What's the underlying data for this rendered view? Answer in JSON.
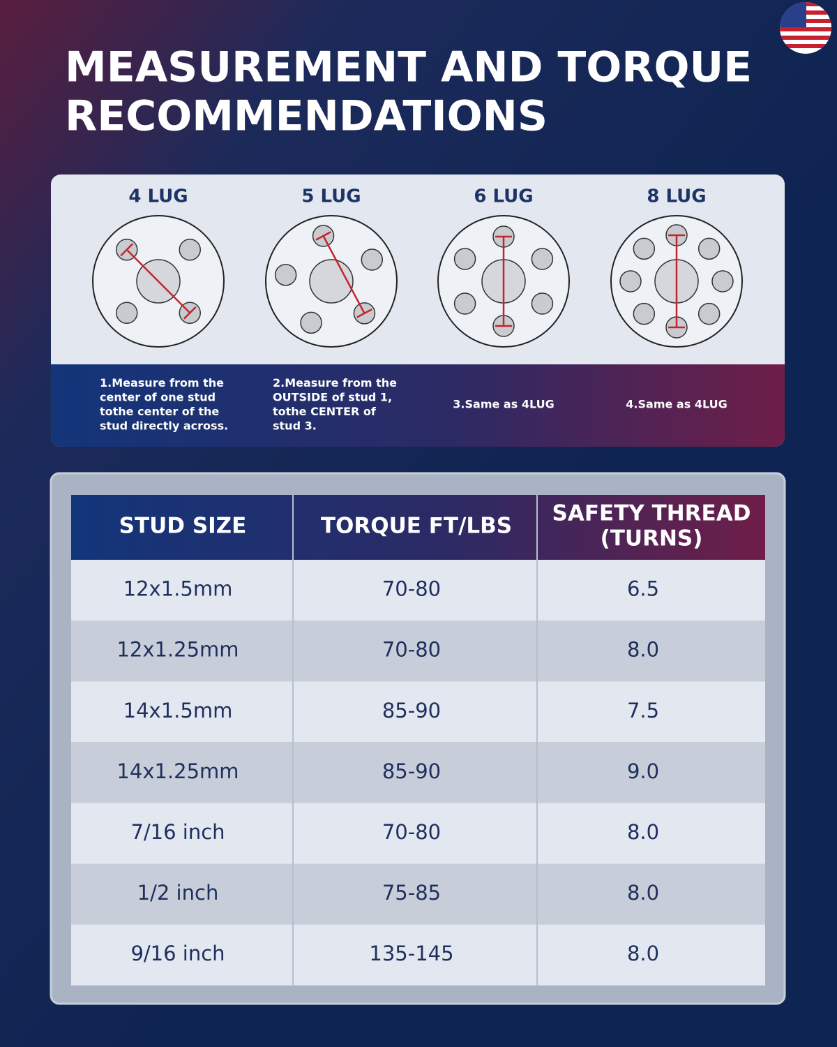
{
  "title": [
    "MEASUREMENT AND TORQUE",
    "RECOMMENDATIONS"
  ],
  "lugs": [
    {
      "label": "4 LUG",
      "caption": [
        "1.Measure from the",
        "center of one stud",
        "tothe center of the",
        "stud directly across."
      ]
    },
    {
      "label": "5 LUG",
      "caption": [
        "2.Measure from the",
        "OUTSIDE of stud 1,",
        "tothe CENTER of",
        "stud 3."
      ]
    },
    {
      "label": "6 LUG",
      "caption": [
        "3.Same as 4LUG"
      ]
    },
    {
      "label": "8 LUG",
      "caption": [
        "4.Same as 4LUG"
      ]
    }
  ],
  "table": {
    "header": [
      [
        "STUD SIZE"
      ],
      [
        "TORQUE FT/LBS"
      ],
      [
        "SAFETY THREAD",
        "(TURNS)"
      ]
    ],
    "rows": [
      [
        "12x1.5mm",
        "70-80",
        "6.5"
      ],
      [
        "12x1.25mm",
        "70-80",
        "8.0"
      ],
      [
        "14x1.5mm",
        "85-90",
        "7.5"
      ],
      [
        "14x1.25mm",
        "85-90",
        "9.0"
      ],
      [
        "7/16 inch",
        "70-80",
        "8.0"
      ],
      [
        "1/2 inch",
        "75-85",
        "8.0"
      ],
      [
        "9/16 inch",
        "135-145",
        "8.0"
      ]
    ]
  }
}
